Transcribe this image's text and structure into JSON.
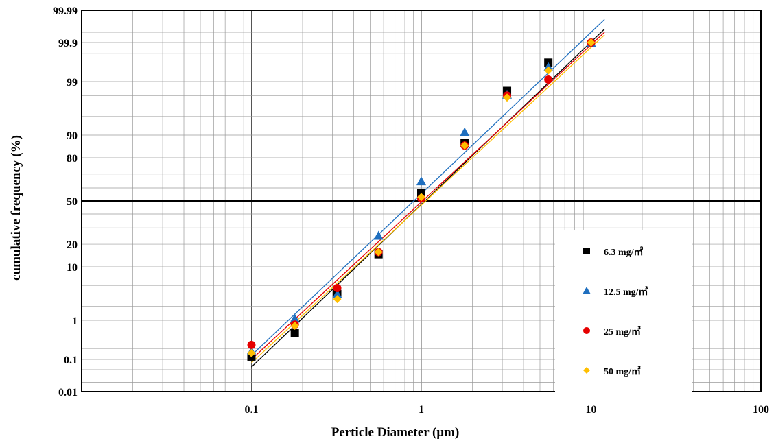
{
  "chart_data": {
    "type": "scatter",
    "title": "",
    "xlabel": "Perticle  Diameter (μm)",
    "ylabel": "cumulative frequency (%)",
    "x_scale": "log",
    "y_scale": "probability",
    "xlim": [
      0.01,
      100
    ],
    "ylim": [
      0.01,
      99.99
    ],
    "x_tick_labels": [
      "0.1",
      "1",
      "10",
      "100"
    ],
    "y_tick_labels": [
      "0.01",
      "0.1",
      "1",
      "10",
      "20",
      "50",
      "80",
      "90",
      "99",
      "99.9",
      "99.99"
    ],
    "grid": true,
    "reference_line": 50,
    "legend_position": "bottom-right",
    "series": [
      {
        "name": "6.3 mg/㎥",
        "marker": "square",
        "color": "#000000",
        "x": [
          0.1,
          0.18,
          0.32,
          0.56,
          1.0,
          1.8,
          3.2,
          5.6
        ],
        "y": [
          0.12,
          0.5,
          3.5,
          15,
          56,
          87,
          98.4,
          99.65
        ],
        "fit_line": {
          "x": [
            0.1,
            12
          ],
          "y": [
            0.06,
            99.96
          ]
        }
      },
      {
        "name": "12.5 mg/㎥",
        "marker": "triangle",
        "color": "#1f6fbf",
        "x": [
          0.1,
          0.18,
          0.32,
          0.56,
          1.0,
          1.8,
          3.2,
          5.6,
          10
        ],
        "y": [
          0.17,
          1.1,
          3.5,
          25,
          65,
          91,
          98.1,
          99.55,
          99.9
        ],
        "fit_line": {
          "x": [
            0.1,
            12
          ],
          "y": [
            0.13,
            99.98
          ]
        }
      },
      {
        "name": "25 mg/㎥",
        "marker": "circle",
        "color": "#e60000",
        "x": [
          0.1,
          0.18,
          0.32,
          0.56,
          1.0,
          1.8,
          3.2,
          5.6,
          10
        ],
        "y": [
          0.25,
          0.8,
          4.5,
          16,
          52,
          86,
          98,
          99.1,
          99.9
        ],
        "fit_line": {
          "x": [
            0.1,
            12
          ],
          "y": [
            0.1,
            99.95
          ]
        }
      },
      {
        "name": "50 mg/㎥",
        "marker": "diamond",
        "color": "#ffbf00",
        "x": [
          0.1,
          0.18,
          0.32,
          0.56,
          1.0,
          1.8,
          3.2,
          5.6,
          10
        ],
        "y": [
          0.15,
          0.75,
          2.8,
          16,
          53,
          86,
          97.8,
          99.45,
          99.9
        ],
        "fit_line": {
          "x": [
            0.1,
            12
          ],
          "y": [
            0.08,
            99.94
          ]
        }
      }
    ]
  }
}
